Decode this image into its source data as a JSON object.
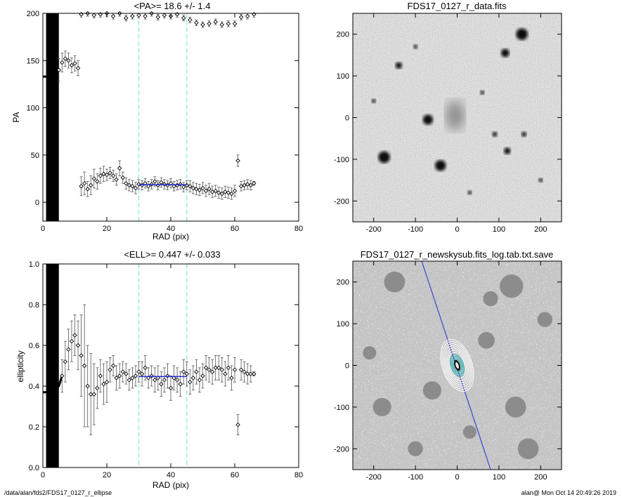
{
  "footer": {
    "path": "/data/alan/fds2/FDS17_0127_r_ellipse",
    "stamp": "alan@  Mon Oct 14 20:49:26 2019"
  },
  "colors": {
    "axes": "#000000",
    "fit_line": "#1f2bd6",
    "marker_lines": "#7fe3ec",
    "isophotes": "#ffffff",
    "inner_isophotes": "#1fb5b5"
  },
  "chart_data": [
    {
      "id": "pa-panel",
      "type": "scatter",
      "title": "<PA>=  18.6 +/-   1.4",
      "xlabel": "RAD (pix)",
      "ylabel": "PA",
      "xlim": [
        0,
        80
      ],
      "ylim": [
        -20,
        200
      ],
      "xticks": [
        0,
        20,
        40,
        60,
        80
      ],
      "yticks": [
        0,
        50,
        100,
        150,
        200
      ],
      "grid": false,
      "vlines": [
        30,
        45
      ],
      "mean_line": {
        "x": [
          30,
          45
        ],
        "y": 18.6
      },
      "inner_shade": {
        "x": [
          1,
          5
        ]
      },
      "series": [
        {
          "x": [
            12,
            13,
            14,
            15,
            16,
            17,
            18,
            19,
            20,
            21,
            22,
            23,
            24,
            25,
            26,
            27,
            28,
            29,
            30,
            31,
            32,
            33,
            34,
            35,
            36,
            37,
            38,
            39,
            40,
            41,
            42,
            43,
            44,
            45,
            46,
            47,
            48,
            49,
            50,
            51,
            52,
            53,
            54,
            55,
            56,
            57,
            58,
            59,
            60,
            61,
            62,
            63,
            64,
            65,
            66
          ],
          "y": [
            17,
            20,
            14,
            18,
            25,
            22,
            28,
            30,
            29,
            31,
            28,
            24,
            36,
            26,
            20,
            18,
            17,
            15,
            19,
            18,
            20,
            17,
            19,
            22,
            18,
            21,
            19,
            18,
            20,
            17,
            18,
            19,
            16,
            18,
            17,
            15,
            14,
            13,
            15,
            12,
            14,
            11,
            12,
            10,
            9,
            11,
            10,
            9,
            12,
            44,
            17,
            18,
            19,
            18,
            20
          ],
          "err": [
            10,
            12,
            8,
            10,
            10,
            8,
            8,
            8,
            6,
            6,
            6,
            6,
            8,
            6,
            6,
            6,
            6,
            6,
            5,
            5,
            5,
            5,
            5,
            5,
            5,
            5,
            5,
            5,
            5,
            5,
            5,
            5,
            5,
            5,
            6,
            6,
            6,
            6,
            6,
            6,
            6,
            6,
            6,
            6,
            6,
            6,
            6,
            6,
            6,
            6,
            5,
            5,
            5,
            5,
            2
          ]
        },
        {
          "x": [
            5,
            6,
            7,
            8,
            9,
            10,
            11
          ],
          "y": [
            140,
            148,
            152,
            150,
            145,
            147,
            142
          ],
          "err": [
            12,
            10,
            8,
            8,
            8,
            8,
            8
          ]
        },
        {
          "x": [
            12,
            14,
            16,
            18,
            20,
            22,
            24,
            26,
            28,
            30,
            32,
            34,
            36,
            38,
            40,
            42,
            44,
            46,
            48,
            50,
            52,
            54,
            56,
            58,
            60,
            62,
            64,
            66
          ],
          "y": [
            199,
            200,
            198,
            199,
            200,
            197,
            200,
            195,
            197,
            198,
            197,
            200,
            196,
            198,
            197,
            199,
            195,
            193,
            190,
            188,
            189,
            191,
            188,
            189,
            189,
            196,
            197,
            199
          ],
          "err": [
            3,
            3,
            3,
            3,
            3,
            3,
            3,
            3,
            3,
            3,
            3,
            3,
            3,
            3,
            3,
            3,
            3,
            3,
            3,
            3,
            3,
            3,
            3,
            3,
            3,
            3,
            3,
            3
          ]
        }
      ]
    },
    {
      "id": "ell-panel",
      "type": "scatter",
      "title": "<ELL>= 0.447 +/-  0.033",
      "xlabel": "RAD (pix)",
      "ylabel": "ellipticity",
      "xlim": [
        0,
        80
      ],
      "ylim": [
        0,
        1
      ],
      "xticks": [
        0,
        20,
        40,
        60,
        80
      ],
      "yticks": [
        0.0,
        0.2,
        0.4,
        0.6,
        0.8,
        1.0
      ],
      "grid": false,
      "vlines": [
        30,
        45
      ],
      "mean_line": {
        "x": [
          30,
          45
        ],
        "y": 0.447
      },
      "inner_shade": {
        "x": [
          1,
          5
        ]
      },
      "series": [
        {
          "x": [
            6,
            7,
            8,
            9,
            10,
            11,
            12,
            13,
            14,
            15,
            16,
            17,
            18,
            19,
            20,
            21,
            22,
            23,
            24,
            25,
            26,
            27,
            28,
            29,
            30,
            31,
            32,
            33,
            34,
            35,
            36,
            37,
            38,
            39,
            40,
            41,
            42,
            43,
            44,
            45,
            46,
            47,
            48,
            49,
            50,
            51,
            52,
            53,
            54,
            55,
            56,
            57,
            58,
            59,
            60,
            61,
            62,
            63,
            64,
            65,
            66
          ],
          "y": [
            0.45,
            0.52,
            0.58,
            0.62,
            0.65,
            0.6,
            0.55,
            0.5,
            0.4,
            0.36,
            0.36,
            0.39,
            0.45,
            0.41,
            0.42,
            0.48,
            0.5,
            0.44,
            0.45,
            0.47,
            0.46,
            0.43,
            0.44,
            0.45,
            0.47,
            0.46,
            0.49,
            0.44,
            0.45,
            0.43,
            0.44,
            0.41,
            0.43,
            0.45,
            0.39,
            0.44,
            0.43,
            0.41,
            0.47,
            0.46,
            0.42,
            0.44,
            0.47,
            0.43,
            0.45,
            0.49,
            0.48,
            0.47,
            0.49,
            0.49,
            0.48,
            0.46,
            0.49,
            0.44,
            0.48,
            0.21,
            0.48,
            0.47,
            0.46,
            0.46,
            0.46
          ],
          "err": [
            0.08,
            0.1,
            0.1,
            0.1,
            0.1,
            0.12,
            0.2,
            0.3,
            0.2,
            0.2,
            0.15,
            0.1,
            0.08,
            0.1,
            0.1,
            0.06,
            0.05,
            0.06,
            0.06,
            0.05,
            0.05,
            0.05,
            0.05,
            0.05,
            0.05,
            0.06,
            0.06,
            0.05,
            0.05,
            0.06,
            0.06,
            0.06,
            0.06,
            0.06,
            0.06,
            0.06,
            0.06,
            0.06,
            0.06,
            0.06,
            0.06,
            0.06,
            0.06,
            0.06,
            0.06,
            0.06,
            0.06,
            0.06,
            0.06,
            0.06,
            0.06,
            0.06,
            0.06,
            0.06,
            0.06,
            0.05,
            0.05,
            0.05,
            0.05,
            0.04,
            0.01
          ]
        }
      ]
    },
    {
      "id": "data-image",
      "type": "heatmap",
      "title": "FDS17_0127_r_data.fits",
      "xlim": [
        -250,
        250
      ],
      "ylim": [
        -250,
        250
      ],
      "xticks": [
        -200,
        -100,
        0,
        100,
        200
      ],
      "yticks": [
        -200,
        -100,
        0,
        100,
        200
      ],
      "sources": [
        {
          "x": 155,
          "y": 200,
          "s": 14
        },
        {
          "x": 115,
          "y": 155,
          "s": 10
        },
        {
          "x": -140,
          "y": 125,
          "s": 8
        },
        {
          "x": -70,
          "y": -5,
          "s": 12
        },
        {
          "x": -175,
          "y": -95,
          "s": 14
        },
        {
          "x": -40,
          "y": -115,
          "s": 13
        },
        {
          "x": -5,
          "y": 5,
          "s": 28
        },
        {
          "x": 90,
          "y": -40,
          "s": 6
        },
        {
          "x": 120,
          "y": -80,
          "s": 8
        },
        {
          "x": 160,
          "y": -40,
          "s": 6
        },
        {
          "x": -100,
          "y": 170,
          "s": 5
        },
        {
          "x": 200,
          "y": -150,
          "s": 5
        },
        {
          "x": 60,
          "y": 60,
          "s": 5
        },
        {
          "x": -200,
          "y": 40,
          "s": 5
        },
        {
          "x": 30,
          "y": -180,
          "s": 5
        }
      ]
    },
    {
      "id": "model-image",
      "type": "heatmap",
      "title": "FDS17_0127_r_newskysub.fits_log.tab.txt.save",
      "xlim": [
        -250,
        250
      ],
      "ylim": [
        -250,
        250
      ],
      "xticks": [
        -200,
        -100,
        0,
        100,
        200
      ],
      "yticks": [
        -200,
        -100,
        0,
        100,
        200
      ],
      "pa_line": {
        "x": [
          -85,
          80
        ],
        "y": [
          250,
          -250
        ]
      },
      "isophote_center": {
        "x": 0,
        "y": 0
      },
      "isophote_pa": 18.6,
      "isophote_ellipticity": 0.447
    }
  ]
}
